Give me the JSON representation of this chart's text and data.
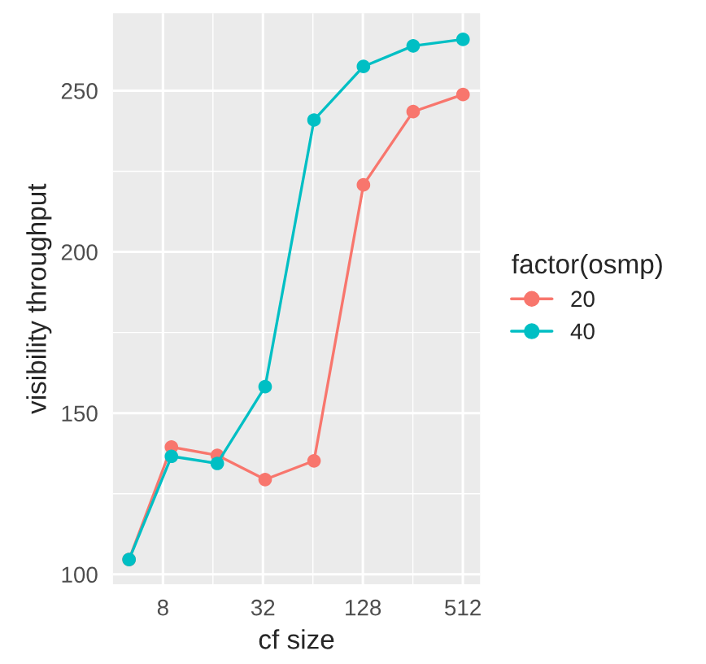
{
  "chart_data": {
    "type": "line",
    "xlabel": "cf size",
    "ylabel": "visibility throughput",
    "legend_title": "factor(osmp)",
    "x": [
      5,
      9,
      17,
      33,
      65,
      129,
      257,
      513
    ],
    "series": [
      {
        "name": "20",
        "color": "#f8766d",
        "values": [
          104.6,
          139.5,
          136.9,
          129.4,
          135.2,
          220.8,
          243.5,
          248.8
        ]
      },
      {
        "name": "40",
        "color": "#00bfc4",
        "values": [
          104.6,
          136.6,
          134.4,
          158.2,
          240.9,
          257.5,
          263.9,
          265.9
        ]
      }
    ],
    "log": "x",
    "xlim": [
      4,
      650
    ],
    "xticks": [
      8,
      32,
      128,
      512
    ],
    "ylim": [
      96.9,
      274
    ],
    "yticks": [
      100,
      150,
      200,
      250
    ],
    "grid": true,
    "legend": "right",
    "marker": "circle",
    "line_style": "solid"
  }
}
